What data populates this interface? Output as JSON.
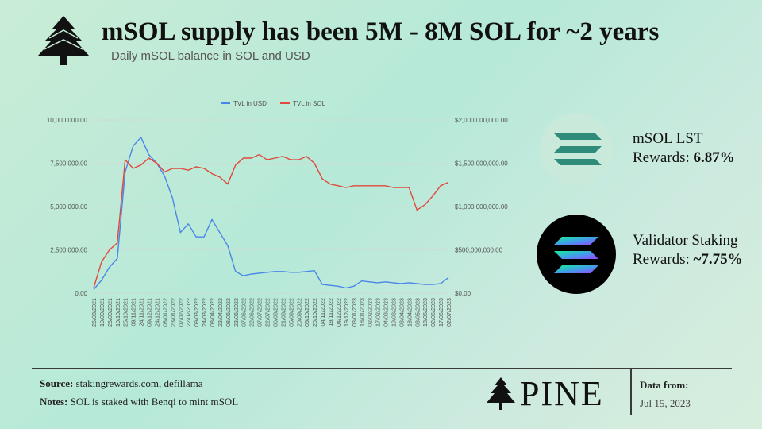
{
  "header": {
    "title": "mSOL supply has been 5M - 8M SOL for ~2 years",
    "subtitle": "Daily mSOL balance in SOL and USD"
  },
  "side": {
    "msol_title": "mSOL LST",
    "msol_prefix": "Rewards: ",
    "msol_value": "6.87%",
    "validator_title": "Validator Staking",
    "validator_prefix": "Rewards: ",
    "validator_value": "~7.75%"
  },
  "footer": {
    "source_label": "Source:",
    "source_value": "stakingrewards.com, defillama",
    "notes_label": "Notes:",
    "notes_value": "SOL is staked with Benqi to mint mSOL",
    "brand": "PINE",
    "data_from_label": "Data from:",
    "data_from_value": "Jul 15, 2023"
  },
  "colors": {
    "usd": "#4a86e8",
    "sol": "#e0493c"
  },
  "chart_data": {
    "type": "line",
    "legend_position": "top",
    "grid": true,
    "x_labels": [
      "26/08/2021",
      "10/09/2021",
      "25/09/2021",
      "10/10/2021",
      "25/10/2021",
      "09/11/2021",
      "24/11/2021",
      "09/12/2021",
      "24/12/2021",
      "08/01/2022",
      "23/01/2022",
      "07/02/2022",
      "22/02/2022",
      "09/03/2022",
      "24/03/2022",
      "08/04/2022",
      "23/04/2022",
      "08/05/2022",
      "23/05/2022",
      "07/06/2022",
      "22/06/2022",
      "07/07/2022",
      "22/07/2022",
      "06/08/2022",
      "21/08/2022",
      "05/09/2022",
      "20/09/2022",
      "05/10/2022",
      "20/10/2022",
      "04/11/2022",
      "19/11/2022",
      "04/12/2022",
      "19/12/2022",
      "03/01/2023",
      "18/01/2023",
      "02/02/2023",
      "17/02/2023",
      "04/03/2023",
      "19/03/2023",
      "03/04/2023",
      "18/04/2023",
      "03/05/2023",
      "18/05/2023",
      "02/06/2023",
      "17/06/2023",
      "02/07/2023"
    ],
    "y_left": {
      "ticks": [
        "0.00",
        "2,500,000.00",
        "5,000,000.00",
        "7,500,000.00",
        "10,000,000.00"
      ],
      "range": [
        0,
        10000000
      ]
    },
    "y_right": {
      "ticks": [
        "$0.00",
        "$500,000,000.00",
        "$1,000,000,000.00",
        "$1,500,000,000.00",
        "$2,000,000,000.00"
      ],
      "range": [
        0,
        2000000000
      ]
    },
    "series": [
      {
        "name": "TVL in USD",
        "axis": "right",
        "values": [
          40000000,
          150000000,
          300000000,
          400000000,
          1400000000,
          1700000000,
          1800000000,
          1600000000,
          1500000000,
          1350000000,
          1100000000,
          700000000,
          800000000,
          650000000,
          650000000,
          850000000,
          700000000,
          550000000,
          250000000,
          200000000,
          220000000,
          230000000,
          240000000,
          250000000,
          250000000,
          240000000,
          240000000,
          250000000,
          260000000,
          100000000,
          90000000,
          80000000,
          60000000,
          80000000,
          140000000,
          130000000,
          120000000,
          130000000,
          120000000,
          110000000,
          120000000,
          110000000,
          100000000,
          100000000,
          110000000,
          180000000
        ]
      },
      {
        "name": "TVL in SOL",
        "axis": "left",
        "values": [
          300000,
          1800000,
          2500000,
          2900000,
          7700000,
          7200000,
          7400000,
          7800000,
          7500000,
          7000000,
          7200000,
          7200000,
          7100000,
          7300000,
          7200000,
          6900000,
          6700000,
          6300000,
          7400000,
          7800000,
          7800000,
          8000000,
          7700000,
          7800000,
          7900000,
          7700000,
          7700000,
          7900000,
          7500000,
          6600000,
          6300000,
          6200000,
          6100000,
          6200000,
          6200000,
          6200000,
          6200000,
          6200000,
          6100000,
          6100000,
          6100000,
          4800000,
          5100000,
          5600000,
          6200000,
          6400000
        ]
      }
    ]
  }
}
